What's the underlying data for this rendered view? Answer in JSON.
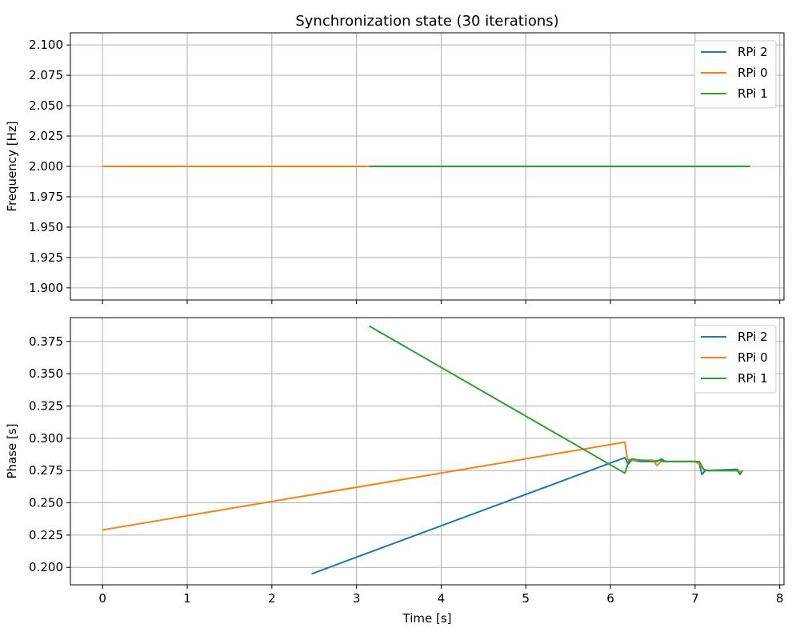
{
  "chart_data": [
    {
      "type": "line",
      "title": "Synchronization state (30 iterations)",
      "xlabel": "",
      "ylabel": "Frequency [Hz]",
      "xlim": [
        -0.38,
        8.05
      ],
      "ylim": [
        1.89,
        2.11
      ],
      "xticks": [
        0,
        1,
        2,
        3,
        4,
        5,
        6,
        7,
        8
      ],
      "yticks": [
        1.9,
        1.925,
        1.95,
        1.975,
        2.0,
        2.025,
        2.05,
        2.075,
        2.1
      ],
      "ytick_labels": [
        "1.900",
        "1.925",
        "1.950",
        "1.975",
        "2.000",
        "2.025",
        "2.050",
        "2.075",
        "2.100"
      ],
      "show_xtick_labels": false,
      "grid": true,
      "legend": "top-right",
      "series": [
        {
          "name": "RPi 2",
          "color": "#1f77b4",
          "x": [
            2.47,
            7.52
          ],
          "y": [
            2.0,
            2.0
          ]
        },
        {
          "name": "RPi 0",
          "color": "#ff7f0e",
          "x": [
            0.0,
            7.55
          ],
          "y": [
            2.0,
            2.0
          ]
        },
        {
          "name": "RPi 1",
          "color": "#2ca02c",
          "x": [
            3.15,
            7.65
          ],
          "y": [
            2.0,
            2.0
          ]
        }
      ]
    },
    {
      "type": "line",
      "title": "",
      "xlabel": "Time [s]",
      "ylabel": "Phase [s]",
      "xlim": [
        -0.38,
        8.05
      ],
      "ylim": [
        0.1865,
        0.3935
      ],
      "xticks": [
        0,
        1,
        2,
        3,
        4,
        5,
        6,
        7,
        8
      ],
      "xtick_labels": [
        "0",
        "1",
        "2",
        "3",
        "4",
        "5",
        "6",
        "7",
        "8"
      ],
      "yticks": [
        0.2,
        0.225,
        0.25,
        0.275,
        0.3,
        0.325,
        0.35,
        0.375
      ],
      "ytick_labels": [
        "0.200",
        "0.225",
        "0.250",
        "0.275",
        "0.300",
        "0.325",
        "0.350",
        "0.375"
      ],
      "show_xtick_labels": true,
      "grid": true,
      "legend": "top-right",
      "series": [
        {
          "name": "RPi 2",
          "color": "#1f77b4",
          "x": [
            2.47,
            6.17,
            6.21,
            6.25,
            6.35,
            6.55,
            6.6,
            6.65,
            7.0,
            7.05,
            7.08,
            7.12,
            7.5,
            7.53,
            7.56
          ],
          "y": [
            0.195,
            0.285,
            0.28,
            0.283,
            0.282,
            0.282,
            0.284,
            0.282,
            0.282,
            0.28,
            0.272,
            0.275,
            0.276,
            0.272,
            0.275
          ]
        },
        {
          "name": "RPi 0",
          "color": "#ff7f0e",
          "x": [
            0.0,
            6.17,
            6.2,
            6.25,
            6.35,
            6.5,
            6.55,
            6.6,
            6.65,
            7.0,
            7.05,
            7.1,
            7.15,
            7.5,
            7.55
          ],
          "y": [
            0.229,
            0.297,
            0.284,
            0.283,
            0.283,
            0.283,
            0.279,
            0.282,
            0.282,
            0.282,
            0.28,
            0.276,
            0.275,
            0.275,
            0.274
          ]
        },
        {
          "name": "RPi 1",
          "color": "#2ca02c",
          "x": [
            3.15,
            6.17,
            6.22,
            6.26,
            6.35,
            6.5,
            6.58,
            6.62,
            7.0,
            7.05,
            7.1,
            7.15,
            7.5,
            7.53,
            7.56
          ],
          "y": [
            0.387,
            0.273,
            0.283,
            0.284,
            0.283,
            0.282,
            0.283,
            0.282,
            0.282,
            0.282,
            0.276,
            0.275,
            0.275,
            0.272,
            0.275
          ]
        }
      ]
    }
  ]
}
